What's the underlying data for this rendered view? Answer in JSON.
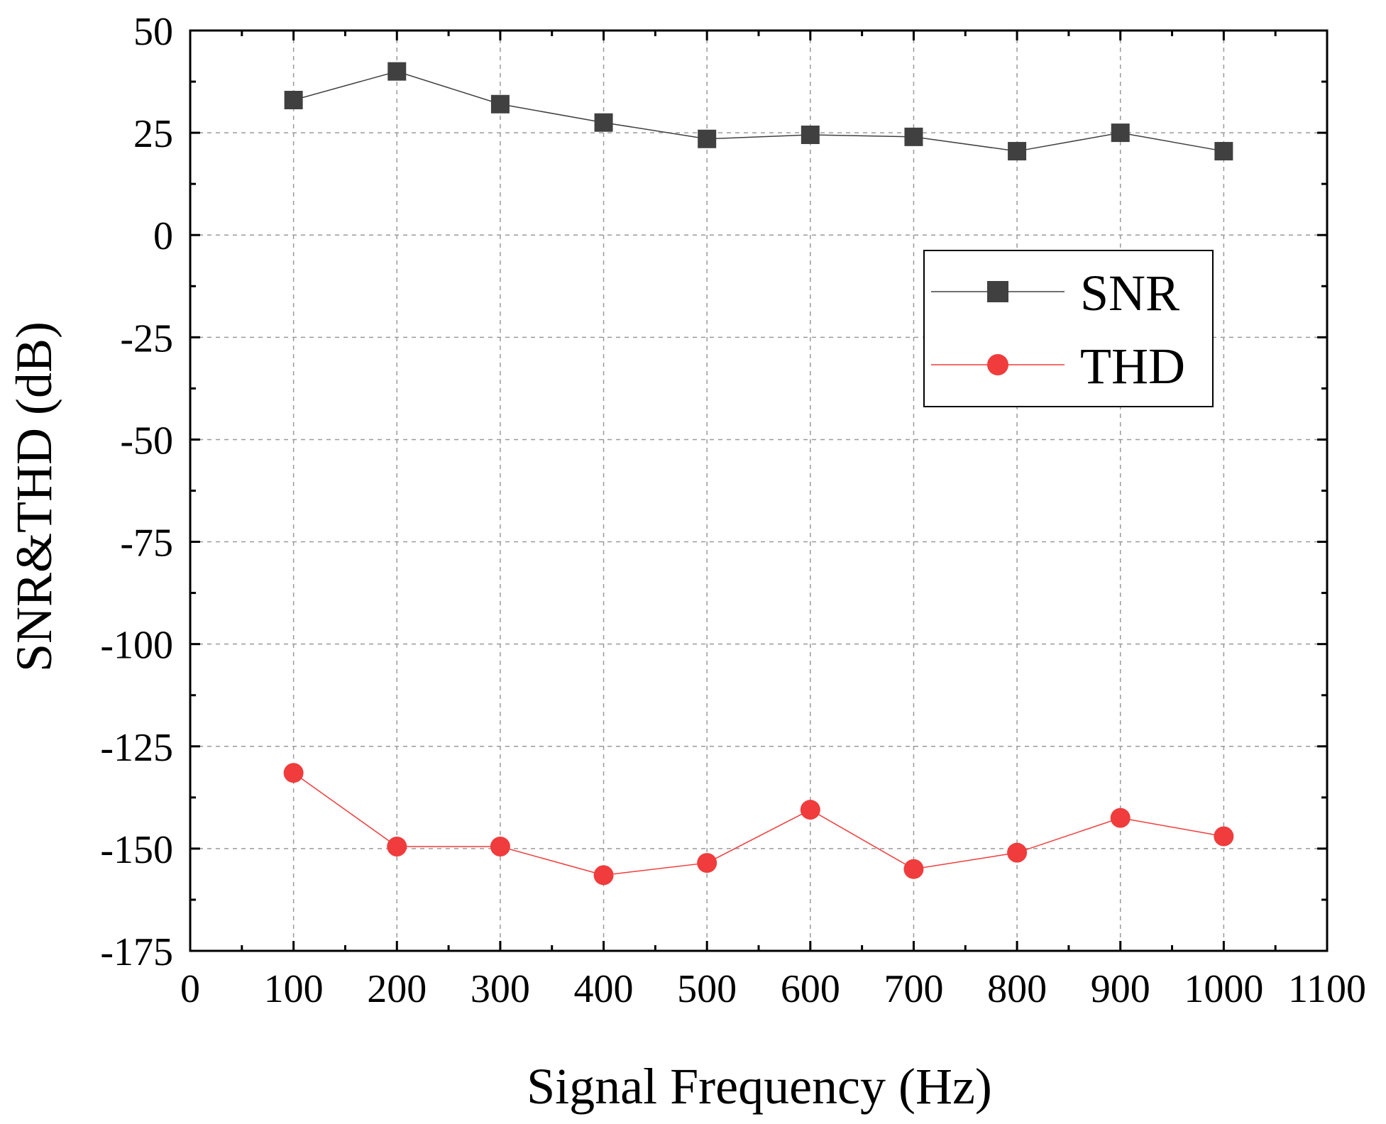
{
  "chart_data": {
    "type": "line",
    "title": "",
    "xlabel": "Signal Frequency (Hz)",
    "ylabel": "SNR&THD (dB)",
    "xlim": [
      0,
      1100
    ],
    "ylim": [
      -175,
      50
    ],
    "xticks": [
      0,
      100,
      200,
      300,
      400,
      500,
      600,
      700,
      800,
      900,
      1000,
      1100
    ],
    "yticks": [
      50,
      25,
      0,
      -25,
      -50,
      -75,
      -100,
      -125,
      -150,
      -175
    ],
    "grid": true,
    "legend_position": "top-right",
    "x": [
      100,
      200,
      300,
      400,
      500,
      600,
      700,
      800,
      900,
      1000
    ],
    "series": [
      {
        "name": "SNR",
        "marker": "square",
        "color": "#404040",
        "values": [
          33,
          40,
          32,
          27.5,
          23.5,
          24.5,
          24,
          20.5,
          25,
          20.5
        ]
      },
      {
        "name": "THD",
        "marker": "circle",
        "color": "#f03c3c",
        "values": [
          -131.5,
          -149.5,
          -149.5,
          -156.5,
          -153.5,
          -140.5,
          -155,
          -151,
          -142.5,
          -147
        ]
      }
    ]
  }
}
